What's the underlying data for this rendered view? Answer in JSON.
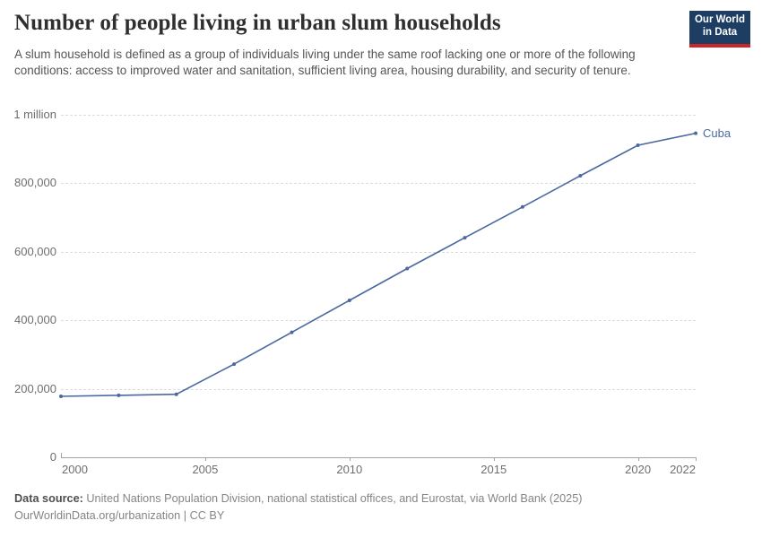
{
  "header": {
    "title": "Number of people living in urban slum households",
    "logo": {
      "line1": "Our World",
      "line2": "in Data",
      "bg_color": "#1d3d63",
      "accent_color": "#cb2626"
    }
  },
  "subtitle": "A slum household is defined as a group of individuals living under the same roof lacking one or more of the following conditions: access to improved water and sanitation, sufficient living area, housing durability, and security of tenure.",
  "chart_data": {
    "type": "line",
    "title": "Number of people living in urban slum households",
    "entity_label": "Cuba",
    "x": [
      2000,
      2002,
      2004,
      2006,
      2008,
      2010,
      2012,
      2014,
      2016,
      2018,
      2020,
      2022
    ],
    "series": [
      {
        "name": "Cuba",
        "color": "#4a69a0",
        "values": [
          178000,
          181000,
          184000,
          272000,
          365000,
          458000,
          551000,
          641000,
          731000,
          822000,
          911000,
          946000
        ]
      }
    ],
    "xlim": [
      2000,
      2022
    ],
    "ylim": [
      0,
      1000000
    ],
    "yticks": [
      {
        "value": 0,
        "label": "0"
      },
      {
        "value": 200000,
        "label": "200,000"
      },
      {
        "value": 400000,
        "label": "400,000"
      },
      {
        "value": 600000,
        "label": "600,000"
      },
      {
        "value": 800000,
        "label": "800,000"
      },
      {
        "value": 1000000,
        "label": "1 million"
      }
    ],
    "xticks": [
      {
        "year": 2000,
        "label": "2000"
      },
      {
        "year": 2005,
        "label": "2005"
      },
      {
        "year": 2010,
        "label": "2010"
      },
      {
        "year": 2015,
        "label": "2015"
      },
      {
        "year": 2020,
        "label": "2020"
      },
      {
        "year": 2022,
        "label": "2022"
      }
    ],
    "grid": "horizontal-dashed",
    "legend_position": "end-of-line",
    "gridline_color": "#dcdcdc",
    "axis_color": "#a3a3a3",
    "tick_label_color": "#6e6e6e"
  },
  "footer": {
    "data_source_label": "Data source:",
    "data_source": " United Nations Population Division, national statistical offices, and Eurostat, via World Bank (2025)",
    "license_line": "OurWorldinData.org/urbanization | CC BY"
  }
}
